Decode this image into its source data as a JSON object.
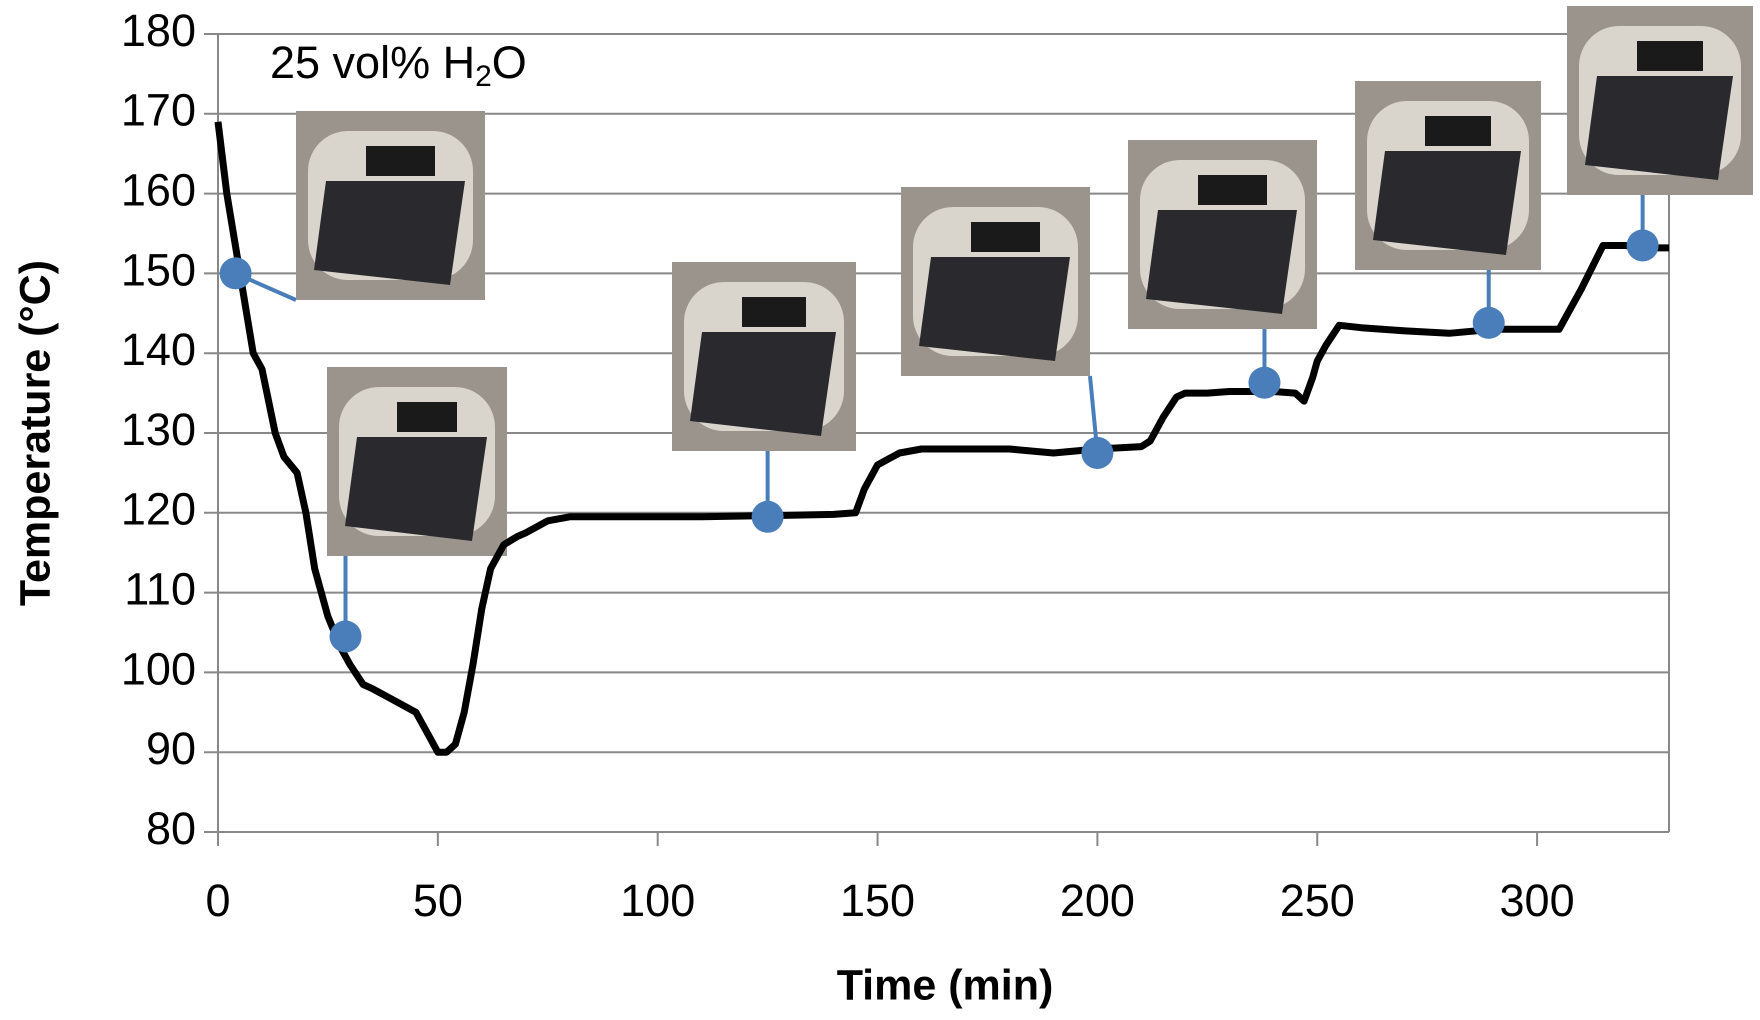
{
  "chart_data": {
    "type": "line",
    "annotation": [
      "25 vol% H",
      "2",
      "O"
    ],
    "x_label": "Time (min)",
    "y_label": "Temperature (°C)",
    "xlim": [
      0,
      330
    ],
    "xticks": [
      0,
      50,
      100,
      150,
      200,
      250,
      300
    ],
    "ylim": [
      80,
      180
    ],
    "yticks": [
      80,
      90,
      100,
      110,
      120,
      130,
      140,
      150,
      160,
      170,
      180
    ],
    "grid": true,
    "series": [
      {
        "color": "#000000",
        "x": [
          0,
          2,
          5,
          8,
          10,
          13,
          15,
          18,
          20,
          22,
          25,
          28,
          30,
          33,
          35,
          40,
          45,
          48,
          50,
          52,
          54,
          56,
          58,
          60,
          62,
          65,
          68,
          70,
          75,
          80,
          85,
          90,
          100,
          110,
          120,
          130,
          140,
          145,
          147,
          150,
          155,
          160,
          170,
          180,
          190,
          200,
          210,
          212,
          215,
          218,
          220,
          225,
          230,
          240,
          245,
          247,
          249,
          250,
          252,
          255,
          260,
          270,
          280,
          290,
          300,
          305,
          308,
          310,
          315,
          320,
          325,
          330
        ],
        "values": [
          169,
          160,
          150,
          140,
          138,
          130,
          127,
          125,
          120,
          113,
          107,
          103,
          101,
          98.5,
          98,
          96.5,
          95,
          92,
          90,
          90,
          91,
          95,
          101,
          108,
          113,
          116,
          117,
          117.5,
          119,
          119.5,
          119.5,
          119.5,
          119.5,
          119.5,
          119.6,
          119.7,
          119.8,
          120,
          123,
          126,
          127.5,
          128,
          128,
          128,
          127.5,
          128,
          128.3,
          129,
          132,
          134.5,
          135,
          135,
          135.2,
          135.2,
          135,
          134,
          137,
          139,
          141,
          143.5,
          143.2,
          142.8,
          142.5,
          143,
          143,
          143,
          146,
          148,
          153.5,
          153.5,
          153.2,
          153.2
        ]
      },
      {
        "color": "#4a7ebb",
        "type": "scatter",
        "x": [
          4,
          29,
          125,
          200,
          238,
          289,
          324
        ],
        "values": [
          150,
          104.5,
          119.5,
          127.5,
          136.3,
          143.8,
          153.5
        ]
      }
    ]
  }
}
